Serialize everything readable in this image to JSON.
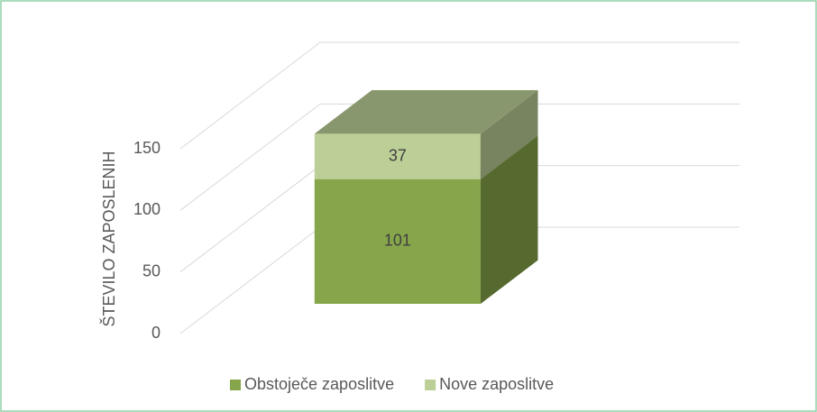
{
  "chart_data": {
    "type": "bar3d-stacked",
    "y_label": "ŠTEVILO ZAPOSLENIH",
    "categories": [
      null
    ],
    "series": [
      {
        "name": "Obstoječe zaposlitve",
        "color": "#87a64b",
        "values": [
          101
        ]
      },
      {
        "name": "Nove zaposlitve",
        "color": "#bccf96",
        "values": [
          37
        ]
      }
    ],
    "ylim": [
      0,
      150
    ],
    "yticks": [
      0,
      50,
      100,
      150
    ],
    "grid": true,
    "legend": "bottom"
  }
}
